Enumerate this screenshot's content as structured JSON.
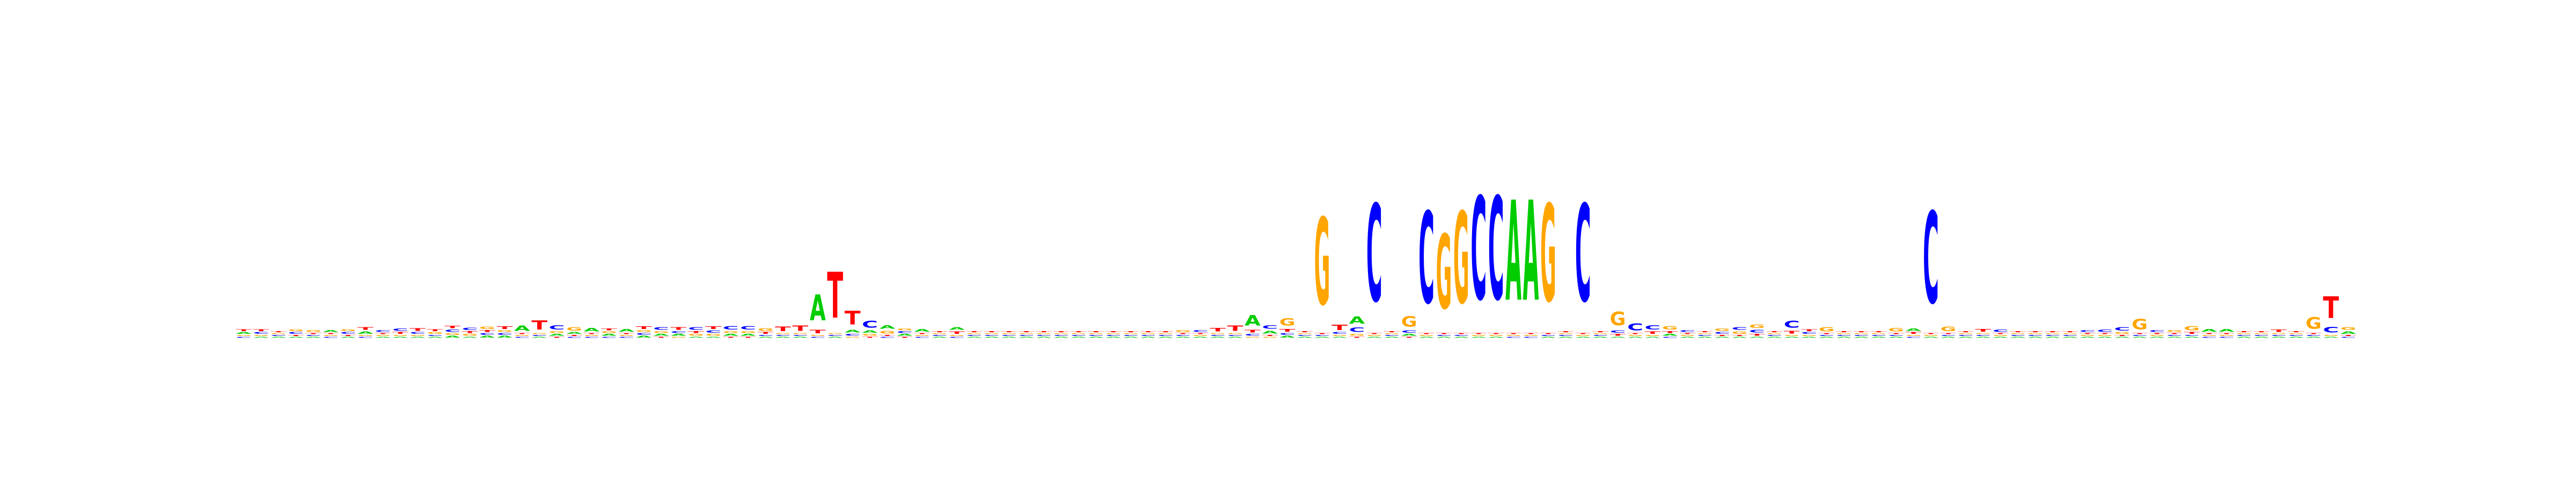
{
  "colors": {
    "A": "#00cc00",
    "C": "#0000ff",
    "G": "#ffa500",
    "T": "#ff0000"
  },
  "chart_data": {
    "type": "sequence-logo",
    "title": "",
    "xlabel": "",
    "ylabel": "",
    "alphabet": [
      "A",
      "C",
      "G",
      "T"
    ],
    "positions": [
      {
        "A": 0.03,
        "C": 0.02,
        "G": 0.02,
        "T": 0.03
      },
      {
        "A": 0.02,
        "C": 0.03,
        "G": 0.02,
        "T": 0.03
      },
      {
        "A": 0.02,
        "C": 0.02,
        "G": 0.02,
        "T": 0.02
      },
      {
        "A": 0.02,
        "C": 0.03,
        "G": 0.03,
        "T": 0.02
      },
      {
        "A": 0.02,
        "C": 0.02,
        "G": 0.03,
        "T": 0.02
      },
      {
        "A": 0.03,
        "C": 0.02,
        "G": 0.02,
        "T": 0.02
      },
      {
        "A": 0.02,
        "C": 0.03,
        "G": 0.03,
        "T": 0.02
      },
      {
        "A": 0.04,
        "C": 0.02,
        "G": 0.02,
        "T": 0.05
      },
      {
        "A": 0.02,
        "C": 0.03,
        "G": 0.02,
        "T": 0.02
      },
      {
        "A": 0.02,
        "C": 0.04,
        "G": 0.02,
        "T": 0.03
      },
      {
        "A": 0.02,
        "C": 0.03,
        "G": 0.02,
        "T": 0.05
      },
      {
        "A": 0.02,
        "C": 0.02,
        "G": 0.03,
        "T": 0.03
      },
      {
        "A": 0.03,
        "C": 0.04,
        "G": 0.03,
        "T": 0.04
      },
      {
        "A": 0.02,
        "C": 0.04,
        "G": 0.03,
        "T": 0.03
      },
      {
        "A": 0.03,
        "C": 0.03,
        "G": 0.04,
        "T": 0.03
      },
      {
        "A": 0.03,
        "C": 0.03,
        "G": 0.03,
        "T": 0.05
      },
      {
        "A": 0.09,
        "C": 0.02,
        "G": 0.02,
        "T": 0.02
      },
      {
        "A": 0.02,
        "C": 0.02,
        "G": 0.02,
        "T": 0.16
      },
      {
        "A": 0.03,
        "C": 0.07,
        "G": 0.03,
        "T": 0.02
      },
      {
        "A": 0.03,
        "C": 0.02,
        "G": 0.06,
        "T": 0.02
      },
      {
        "A": 0.06,
        "C": 0.02,
        "G": 0.02,
        "T": 0.02
      },
      {
        "A": 0.03,
        "C": 0.02,
        "G": 0.03,
        "T": 0.03
      },
      {
        "A": 0.05,
        "C": 0.02,
        "G": 0.02,
        "T": 0.02
      },
      {
        "A": 0.03,
        "C": 0.03,
        "G": 0.03,
        "T": 0.05
      },
      {
        "A": 0.03,
        "C": 0.05,
        "G": 0.03,
        "T": 0.02
      },
      {
        "A": 0.03,
        "C": 0.03,
        "G": 0.02,
        "T": 0.05
      },
      {
        "A": 0.02,
        "C": 0.05,
        "G": 0.03,
        "T": 0.03
      },
      {
        "A": 0.02,
        "C": 0.04,
        "G": 0.03,
        "T": 0.05
      },
      {
        "A": 0.03,
        "C": 0.06,
        "G": 0.03,
        "T": 0.02
      },
      {
        "A": 0.03,
        "C": 0.06,
        "G": 0.03,
        "T": 0.02
      },
      {
        "A": 0.02,
        "C": 0.02,
        "G": 0.05,
        "T": 0.03
      },
      {
        "A": 0.02,
        "C": 0.02,
        "G": 0.02,
        "T": 0.08
      },
      {
        "A": 0.02,
        "C": 0.02,
        "G": 0.02,
        "T": 0.09
      },
      {
        "A": 0.45,
        "C": 0.02,
        "G": 0.02,
        "T": 0.06
      },
      {
        "A": 0.02,
        "C": 0.02,
        "G": 0.02,
        "T": 0.8
      },
      {
        "A": 0.05,
        "C": 0.03,
        "G": 0.02,
        "T": 0.24
      },
      {
        "A": 0.04,
        "C": 0.12,
        "G": 0.03,
        "T": 0.02
      },
      {
        "A": 0.06,
        "C": 0.02,
        "G": 0.05,
        "T": 0.02
      },
      {
        "A": 0.03,
        "C": 0.03,
        "G": 0.03,
        "T": 0.02
      },
      {
        "A": 0.05,
        "C": 0.02,
        "G": 0.02,
        "T": 0.02
      },
      {
        "A": 0.02,
        "C": 0.02,
        "G": 0.02,
        "T": 0.02
      },
      {
        "A": 0.05,
        "C": 0.02,
        "G": 0.02,
        "T": 0.04
      },
      {
        "A": 0.02,
        "C": 0.02,
        "G": 0.02,
        "T": 0.02
      },
      {
        "A": 0.02,
        "C": 0.02,
        "G": 0.02,
        "T": 0.02
      },
      {
        "A": 0.02,
        "C": 0.02,
        "G": 0.02,
        "T": 0.02
      },
      {
        "A": 0.02,
        "C": 0.02,
        "G": 0.02,
        "T": 0.02
      },
      {
        "A": 0.02,
        "C": 0.02,
        "G": 0.02,
        "T": 0.02
      },
      {
        "A": 0.02,
        "C": 0.02,
        "G": 0.02,
        "T": 0.02
      },
      {
        "A": 0.02,
        "C": 0.02,
        "G": 0.02,
        "T": 0.02
      },
      {
        "A": 0.02,
        "C": 0.02,
        "G": 0.02,
        "T": 0.02
      },
      {
        "A": 0.02,
        "C": 0.02,
        "G": 0.02,
        "T": 0.02
      },
      {
        "A": 0.02,
        "C": 0.02,
        "G": 0.02,
        "T": 0.02
      },
      {
        "A": 0.02,
        "C": 0.02,
        "G": 0.02,
        "T": 0.02
      },
      {
        "A": 0.02,
        "C": 0.02,
        "G": 0.02,
        "T": 0.02
      },
      {
        "A": 0.02,
        "C": 0.02,
        "G": 0.03,
        "T": 0.02
      },
      {
        "A": 0.02,
        "C": 0.03,
        "G": 0.02,
        "T": 0.02
      },
      {
        "A": 0.02,
        "C": 0.02,
        "G": 0.02,
        "T": 0.06
      },
      {
        "A": 0.02,
        "C": 0.02,
        "G": 0.02,
        "T": 0.09
      },
      {
        "A": 0.18,
        "C": 0.03,
        "G": 0.02,
        "T": 0.05
      },
      {
        "A": 0.05,
        "C": 0.06,
        "G": 0.02,
        "T": 0.02
      },
      {
        "A": 0.03,
        "C": 0.03,
        "G": 0.13,
        "T": 0.05
      },
      {
        "A": 0.02,
        "C": 0.02,
        "G": 0.02,
        "T": 0.02
      },
      {
        "A": 0.02,
        "C": 0.02,
        "G": 1.52,
        "T": 0.02
      },
      {
        "A": 0.02,
        "C": 0.03,
        "G": 0.02,
        "T": 0.09
      },
      {
        "A": 0.13,
        "C": 0.08,
        "G": 0.03,
        "T": 0.02
      },
      {
        "A": 0.02,
        "C": 1.7,
        "G": 0.02,
        "T": 0.02
      },
      {
        "A": 0.02,
        "C": 0.02,
        "G": 0.02,
        "T": 0.02
      },
      {
        "A": 0.03,
        "C": 0.04,
        "G": 0.18,
        "T": 0.02
      },
      {
        "A": 0.02,
        "C": 1.6,
        "G": 0.02,
        "T": 0.02
      },
      {
        "A": 0.02,
        "C": 0.02,
        "G": 1.3,
        "T": 0.02
      },
      {
        "A": 0.02,
        "C": 0.02,
        "G": 1.6,
        "T": 0.02
      },
      {
        "A": 0.02,
        "C": 1.8,
        "G": 0.02,
        "T": 0.02
      },
      {
        "A": 0.02,
        "C": 1.8,
        "G": 0.02,
        "T": 0.02
      },
      {
        "A": 1.75,
        "C": 0.02,
        "G": 0.02,
        "T": 0.02
      },
      {
        "A": 1.75,
        "C": 0.02,
        "G": 0.02,
        "T": 0.02
      },
      {
        "A": 0.02,
        "C": 0.02,
        "G": 1.7,
        "T": 0.02
      },
      {
        "A": 0.02,
        "C": 0.02,
        "G": 0.02,
        "T": 0.02
      },
      {
        "A": 0.02,
        "C": 1.7,
        "G": 0.02,
        "T": 0.02
      },
      {
        "A": 0.02,
        "C": 0.02,
        "G": 0.02,
        "T": 0.02
      },
      {
        "A": 0.02,
        "C": 0.04,
        "G": 0.24,
        "T": 0.03
      },
      {
        "A": 0.02,
        "C": 0.12,
        "G": 0.02,
        "T": 0.02
      },
      {
        "A": 0.02,
        "C": 0.07,
        "G": 0.02,
        "T": 0.04
      },
      {
        "A": 0.03,
        "C": 0.02,
        "G": 0.06,
        "T": 0.03
      },
      {
        "A": 0.02,
        "C": 0.03,
        "G": 0.02,
        "T": 0.02
      },
      {
        "A": 0.02,
        "C": 0.02,
        "G": 0.02,
        "T": 0.02
      },
      {
        "A": 0.02,
        "C": 0.03,
        "G": 0.04,
        "T": 0.02
      },
      {
        "A": 0.02,
        "C": 0.05,
        "G": 0.04,
        "T": 0.02
      },
      {
        "A": 0.02,
        "C": 0.05,
        "G": 0.06,
        "T": 0.03
      },
      {
        "A": 0.02,
        "C": 0.02,
        "G": 0.02,
        "T": 0.02
      },
      {
        "A": 0.02,
        "C": 0.12,
        "G": 0.02,
        "T": 0.05
      },
      {
        "A": 0.02,
        "C": 0.03,
        "G": 0.02,
        "T": 0.03
      },
      {
        "A": 0.02,
        "C": 0.02,
        "G": 0.07,
        "T": 0.02
      },
      {
        "A": 0.02,
        "C": 0.02,
        "G": 0.02,
        "T": 0.02
      },
      {
        "A": 0.02,
        "C": 0.02,
        "G": 0.02,
        "T": 0.02
      },
      {
        "A": 0.02,
        "C": 0.02,
        "G": 0.02,
        "T": 0.02
      },
      {
        "A": 0.02,
        "C": 0.02,
        "G": 0.06,
        "T": 0.02
      },
      {
        "A": 0.04,
        "C": 0.02,
        "G": 0.02,
        "T": 0.03
      },
      {
        "A": 0.02,
        "C": 1.6,
        "G": 0.02,
        "T": 0.02
      },
      {
        "A": 0.02,
        "C": 0.02,
        "G": 0.08,
        "T": 0.02
      },
      {
        "A": 0.02,
        "C": 0.02,
        "G": 0.02,
        "T": 0.02
      },
      {
        "A": 0.02,
        "C": 0.02,
        "G": 0.02,
        "T": 0.05
      },
      {
        "A": 0.02,
        "C": 0.04,
        "G": 0.02,
        "T": 0.02
      },
      {
        "A": 0.02,
        "C": 0.02,
        "G": 0.02,
        "T": 0.02
      },
      {
        "A": 0.02,
        "C": 0.02,
        "G": 0.02,
        "T": 0.02
      },
      {
        "A": 0.02,
        "C": 0.02,
        "G": 0.02,
        "T": 0.02
      },
      {
        "A": 0.02,
        "C": 0.02,
        "G": 0.02,
        "T": 0.02
      },
      {
        "A": 0.02,
        "C": 0.03,
        "G": 0.02,
        "T": 0.02
      },
      {
        "A": 0.02,
        "C": 0.04,
        "G": 0.02,
        "T": 0.02
      },
      {
        "A": 0.02,
        "C": 0.06,
        "G": 0.03,
        "T": 0.02
      },
      {
        "A": 0.02,
        "C": 0.02,
        "G": 0.18,
        "T": 0.02
      },
      {
        "A": 0.02,
        "C": 0.03,
        "G": 0.02,
        "T": 0.02
      },
      {
        "A": 0.02,
        "C": 0.02,
        "G": 0.03,
        "T": 0.02
      },
      {
        "A": 0.02,
        "C": 0.02,
        "G": 0.07,
        "T": 0.03
      },
      {
        "A": 0.05,
        "C": 0.02,
        "G": 0.02,
        "T": 0.02
      },
      {
        "A": 0.05,
        "C": 0.02,
        "G": 0.02,
        "T": 0.02
      },
      {
        "A": 0.02,
        "C": 0.02,
        "G": 0.02,
        "T": 0.02
      },
      {
        "A": 0.02,
        "C": 0.02,
        "G": 0.02,
        "T": 0.02
      },
      {
        "A": 0.02,
        "C": 0.02,
        "G": 0.02,
        "T": 0.04
      },
      {
        "A": 0.02,
        "C": 0.02,
        "G": 0.02,
        "T": 0.02
      },
      {
        "A": 0.02,
        "C": 0.02,
        "G": 0.2,
        "T": 0.02
      },
      {
        "A": 0.02,
        "C": 0.1,
        "G": 0.02,
        "T": 0.38
      },
      {
        "A": 0.04,
        "C": 0.02,
        "G": 0.05,
        "T": 0.02
      }
    ]
  }
}
